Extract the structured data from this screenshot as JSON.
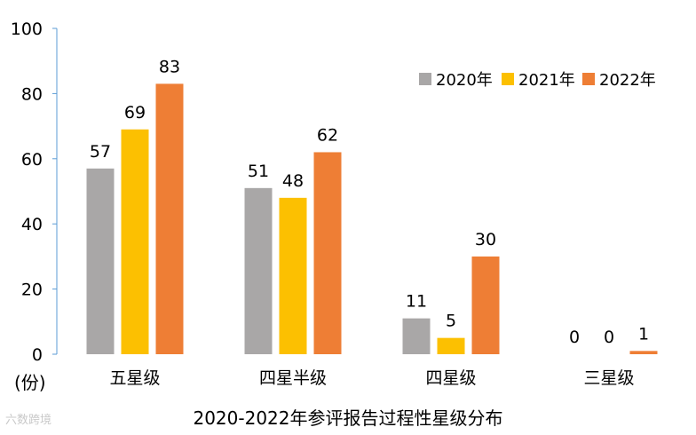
{
  "chart_data": {
    "type": "bar",
    "title": "2020-2022年参评报告过程性星级分布",
    "unit_label": "(份)",
    "categories": [
      "五星级",
      "四星半级",
      "四星级",
      "三星级"
    ],
    "series": [
      {
        "name": "2020年",
        "color": "#a9a7a7",
        "values": [
          57,
          51,
          11,
          0
        ]
      },
      {
        "name": "2021年",
        "color": "#fcc001",
        "values": [
          69,
          48,
          5,
          0
        ]
      },
      {
        "name": "2022年",
        "color": "#ee7e35",
        "values": [
          83,
          62,
          30,
          1
        ]
      }
    ],
    "yticks": [
      0,
      20,
      40,
      60,
      80,
      100
    ],
    "ylim": [
      0,
      100
    ],
    "legend_position": "top-right",
    "grid": false
  },
  "watermark": "六数跨境"
}
